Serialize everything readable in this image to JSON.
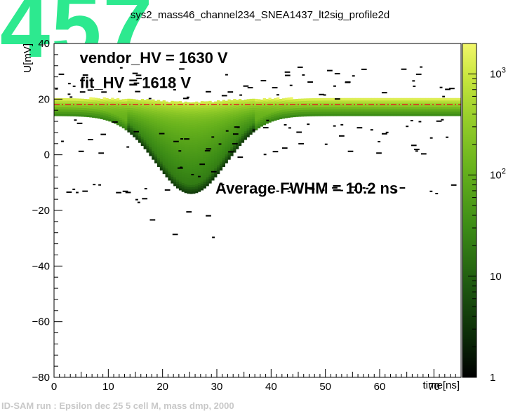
{
  "watermark": "457",
  "page_title": "sys2_mass46_channel234_SNEA1437_lt2sig_profile2d",
  "footer_text": "ID-SAM run : Epsilon dec 25 5 cell M, mass dmp, 2000",
  "chart_data": {
    "type": "heatmap",
    "title": "sys2_mass46_channel234_SNEA1437_lt2sig_profile2d",
    "xlabel": "time[ns]",
    "ylabel": "U[mV]",
    "xlim": [
      0,
      75
    ],
    "ylim": [
      -80,
      40
    ],
    "x_ticks": [
      0,
      10,
      20,
      30,
      40,
      50,
      60,
      70
    ],
    "y_ticks": [
      40,
      20,
      0,
      -20,
      -40,
      -60,
      -80
    ],
    "colorbar": {
      "scale": "log",
      "range": [
        1,
        2000
      ],
      "tick_values": [
        1,
        10,
        100,
        1000
      ],
      "tick_labels": [
        "1",
        "10",
        "10^2",
        "10^3"
      ],
      "colors": [
        "#000000",
        "#0b2a07",
        "#1f5a10",
        "#3c8c16",
        "#66b11c",
        "#98cf2a",
        "#c9e63e",
        "#f2f76a"
      ]
    },
    "baseline_mV": 18,
    "pulse": {
      "t_peak_ns": 25,
      "min_mV": -10,
      "tail_min_mV": -37
    },
    "fit_line": {
      "y_mV": 18,
      "color": "#e02020",
      "style": "dash-dot"
    },
    "annotations": [
      {
        "text": "vendor_HV = 1630 V",
        "x": 5,
        "y": 33
      },
      {
        "text": "fit_HV = 1618 V",
        "x": 5,
        "y": 24
      },
      {
        "text": "Average FWHM =  10.2 ns",
        "x": 30,
        "y": -14
      }
    ]
  }
}
